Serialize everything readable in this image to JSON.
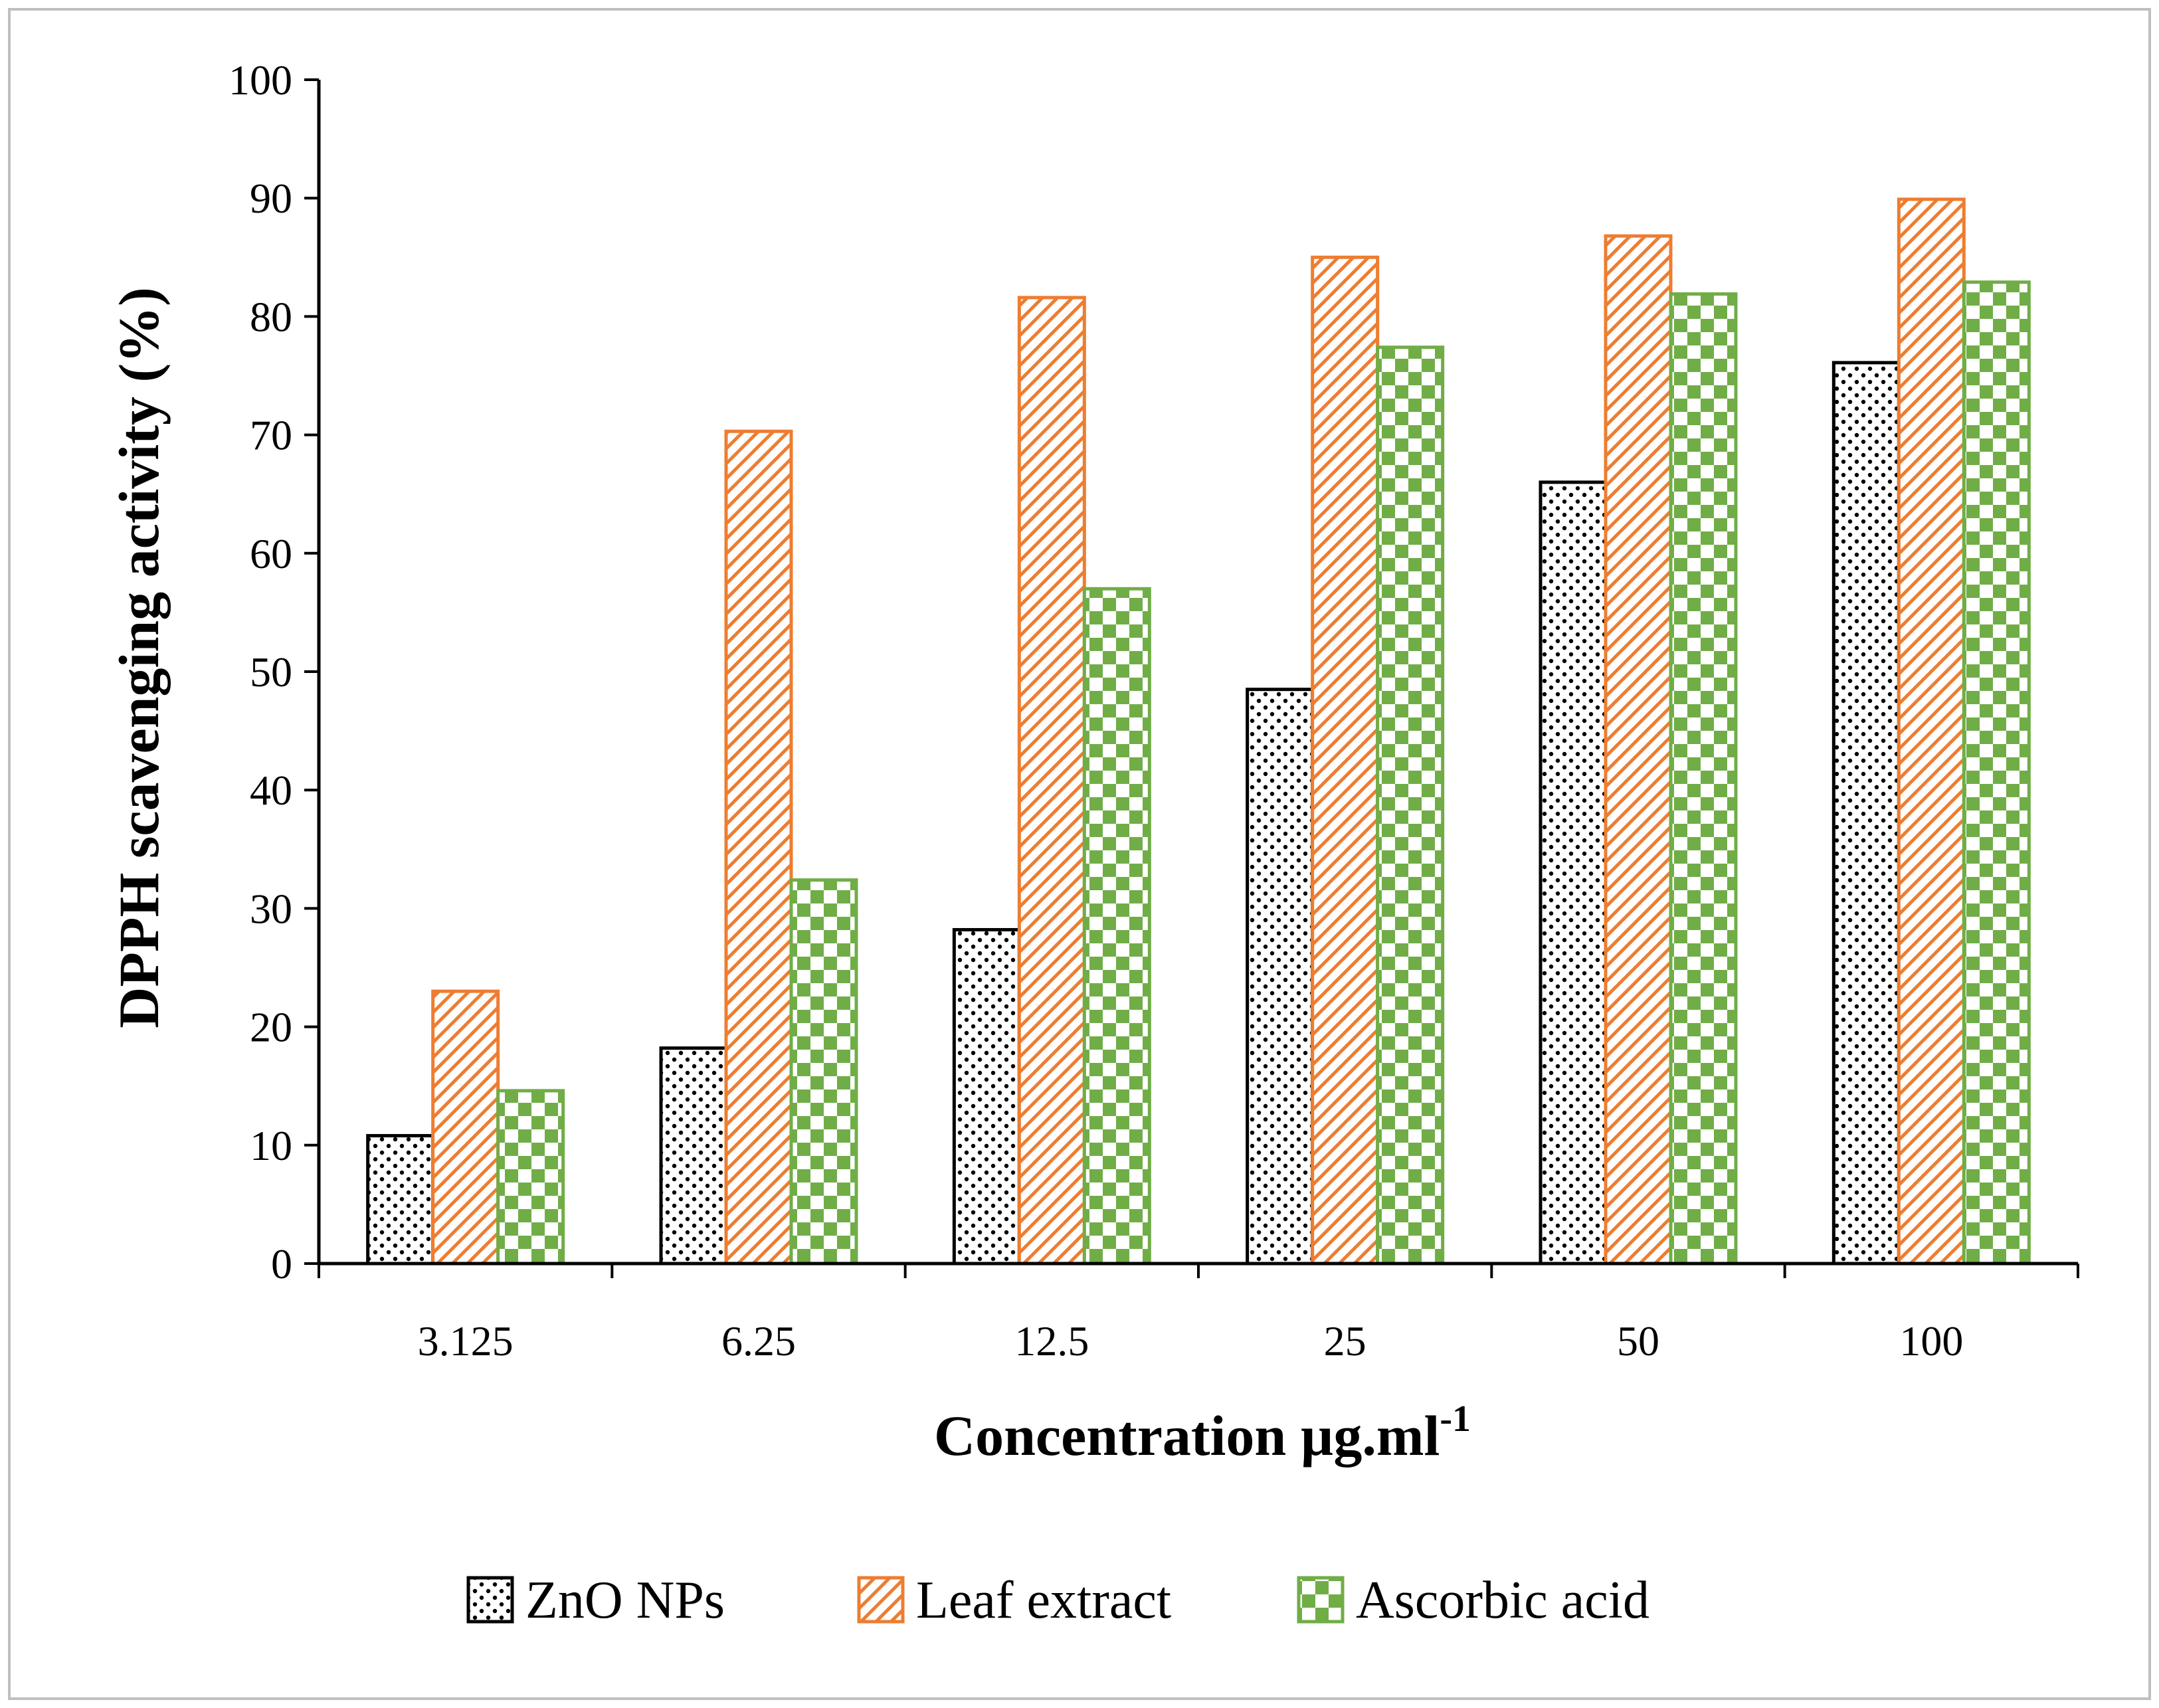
{
  "chart_data": {
    "type": "bar",
    "title": "",
    "xlabel": "Concentration µg.ml",
    "xlabel_sup": "-1",
    "ylabel": "DPPH scavenging activity (%)",
    "ylim": [
      0,
      100
    ],
    "yticks": [
      0,
      10,
      20,
      30,
      40,
      50,
      60,
      70,
      80,
      90,
      100
    ],
    "grid": false,
    "legend_position": "bottom",
    "categories": [
      "3.125",
      "6.25",
      "12.5",
      "25",
      "50",
      "100"
    ],
    "series": [
      {
        "name": "ZnO NPs",
        "values": [
          10.8,
          18.2,
          28.2,
          48.5,
          66.0,
          76.1
        ],
        "color": "#000000",
        "pattern": "dots"
      },
      {
        "name": "Leaf extract",
        "values": [
          23.0,
          70.3,
          81.6,
          85.0,
          86.8,
          89.9
        ],
        "color": "#ED7D31",
        "pattern": "diagonal"
      },
      {
        "name": "Ascorbic acid",
        "values": [
          14.6,
          32.4,
          57.0,
          77.4,
          81.9,
          82.9
        ],
        "color": "#70AD47",
        "pattern": "checker"
      }
    ]
  }
}
